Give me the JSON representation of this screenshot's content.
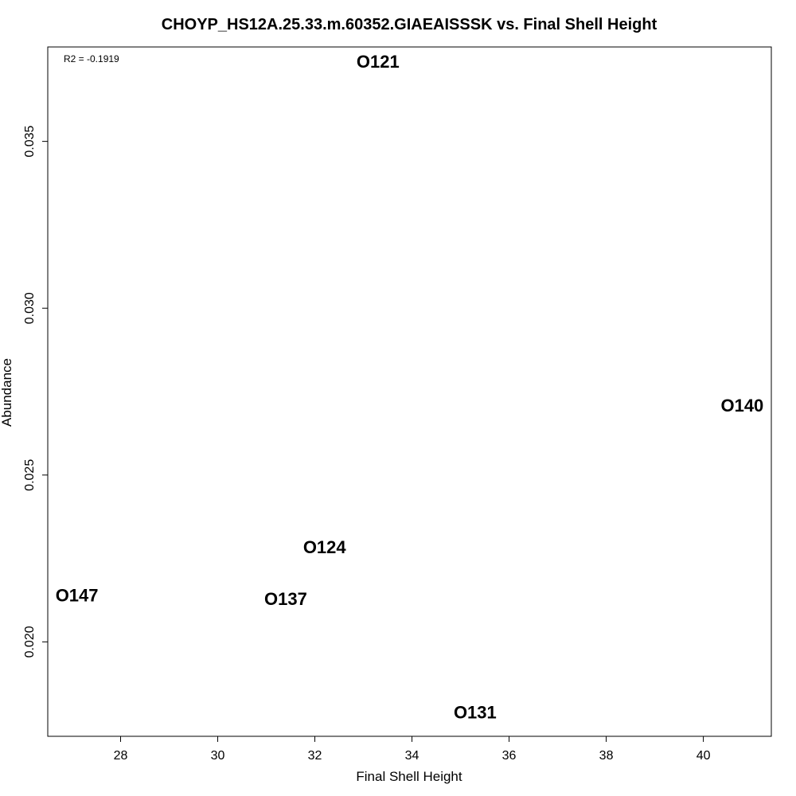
{
  "chart_data": {
    "type": "scatter",
    "title": "CHOYP_HS12A.25.33.m.60352.GIAEAISSSK vs. Final Shell Height",
    "xlabel": "Final Shell Height",
    "ylabel": "Abundance",
    "annotation": "R2 = -0.1919",
    "xlim": [
      26.5,
      41.4
    ],
    "ylim": [
      0.01717,
      0.03783
    ],
    "xticks": [
      28,
      30,
      32,
      34,
      36,
      38,
      40
    ],
    "yticks": [
      0.02,
      0.025,
      0.03,
      0.035
    ],
    "xtick_labels": [
      "28",
      "30",
      "32",
      "34",
      "36",
      "38",
      "40"
    ],
    "ytick_labels": [
      "0.020",
      "0.025",
      "0.030",
      "0.035"
    ],
    "grid": false,
    "points": [
      {
        "label": "O121",
        "x": 33.3,
        "y": 0.0374
      },
      {
        "label": "O140",
        "x": 40.8,
        "y": 0.0271
      },
      {
        "label": "O124",
        "x": 32.2,
        "y": 0.02285
      },
      {
        "label": "O147",
        "x": 27.1,
        "y": 0.0214
      },
      {
        "label": "O137",
        "x": 31.4,
        "y": 0.0213
      },
      {
        "label": "O131",
        "x": 35.3,
        "y": 0.0179
      }
    ]
  }
}
